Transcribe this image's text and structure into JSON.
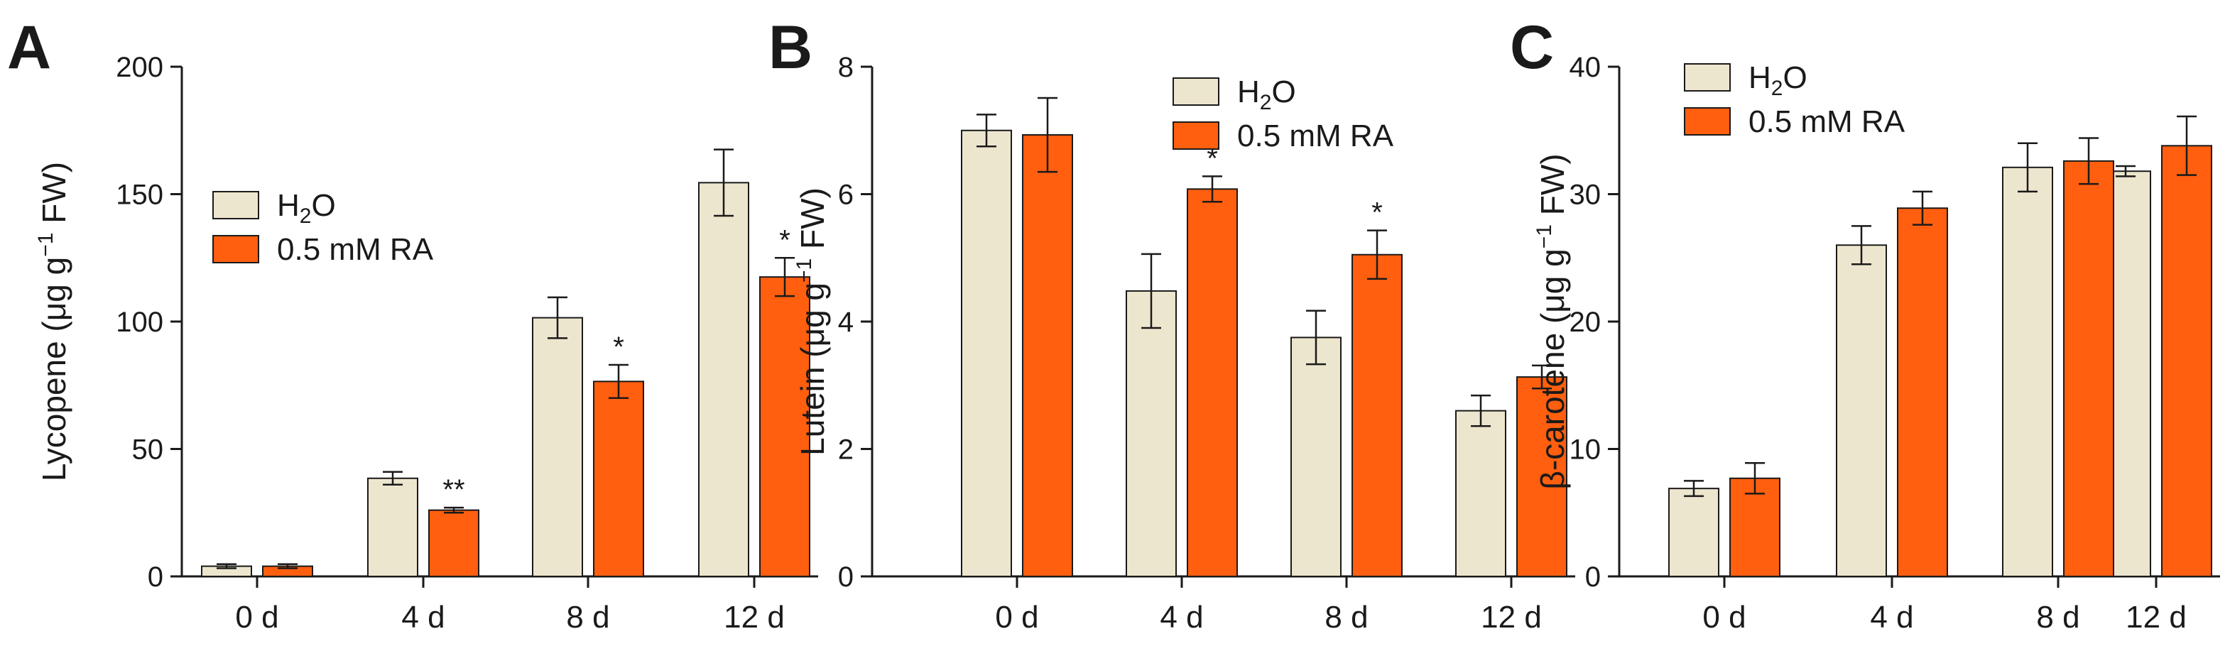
{
  "colors": {
    "h2o": "#EDE6CE",
    "ra": "#FF5F0F",
    "axis": "#1a1a1a"
  },
  "legend": {
    "h2o_base": "H",
    "h2o_sub": "2",
    "h2o_end": "O",
    "ra": "0.5 mM RA"
  },
  "ylabel_parts": {
    "unit_open": " (μg g",
    "unit_sup": "−1",
    "unit_close": " FW)"
  },
  "chart_data": [
    {
      "type": "bar",
      "panel": "A",
      "ylabel_main": "Lycopene",
      "categories": [
        "0 d",
        "4 d",
        "8 d",
        "12 d"
      ],
      "ylim": [
        0,
        200
      ],
      "yticks": [
        "0",
        "50",
        "100",
        "150",
        "200"
      ],
      "legend_position": "center",
      "series": [
        {
          "name": "H2O",
          "values": [
            4,
            38.5,
            101.5,
            154.5
          ],
          "errors": [
            0.8,
            2.5,
            8,
            13
          ]
        },
        {
          "name": "0.5 mM RA",
          "values": [
            4,
            26,
            76.5,
            117.5
          ],
          "errors": [
            0.8,
            1,
            6.5,
            7.5
          ]
        }
      ],
      "significance": [
        {
          "series": 1,
          "index": 1,
          "label": "**"
        },
        {
          "series": 1,
          "index": 2,
          "label": "*"
        },
        {
          "series": 1,
          "index": 3,
          "label": "*"
        }
      ]
    },
    {
      "type": "bar",
      "panel": "B",
      "ylabel_main": "Lutein",
      "categories": [
        "0 d",
        "4 d",
        "8 d",
        "12 d"
      ],
      "ylim": [
        0,
        8
      ],
      "yticks": [
        "0",
        "2",
        "4",
        "6",
        "8"
      ],
      "legend_position": "top-right",
      "series": [
        {
          "name": "H2O",
          "values": [
            7.0,
            4.48,
            3.75,
            2.6
          ],
          "errors": [
            0.25,
            0.58,
            0.42,
            0.24
          ]
        },
        {
          "name": "0.5 mM RA",
          "values": [
            6.93,
            6.08,
            5.05,
            3.13
          ],
          "errors": [
            0.58,
            0.2,
            0.38,
            0.18
          ]
        }
      ],
      "significance": [
        {
          "series": 1,
          "index": 1,
          "label": "*"
        },
        {
          "series": 1,
          "index": 2,
          "label": "*"
        }
      ]
    },
    {
      "type": "bar",
      "panel": "C",
      "ylabel_main": "β-carotene",
      "categories": [
        "0 d",
        "4 d",
        "8 d",
        "12 d"
      ],
      "ylim": [
        0,
        40
      ],
      "yticks": [
        "0",
        "10",
        "20",
        "30",
        "40"
      ],
      "legend_position": "top-left",
      "series": [
        {
          "name": "H2O",
          "values": [
            6.9,
            26.0,
            32.1,
            31.8
          ],
          "errors": [
            0.6,
            1.5,
            1.9,
            0.4
          ]
        },
        {
          "name": "0.5 mM RA",
          "values": [
            7.7,
            28.9,
            32.6,
            33.8
          ],
          "errors": [
            1.2,
            1.3,
            1.8,
            2.3
          ]
        }
      ],
      "significance": []
    }
  ]
}
